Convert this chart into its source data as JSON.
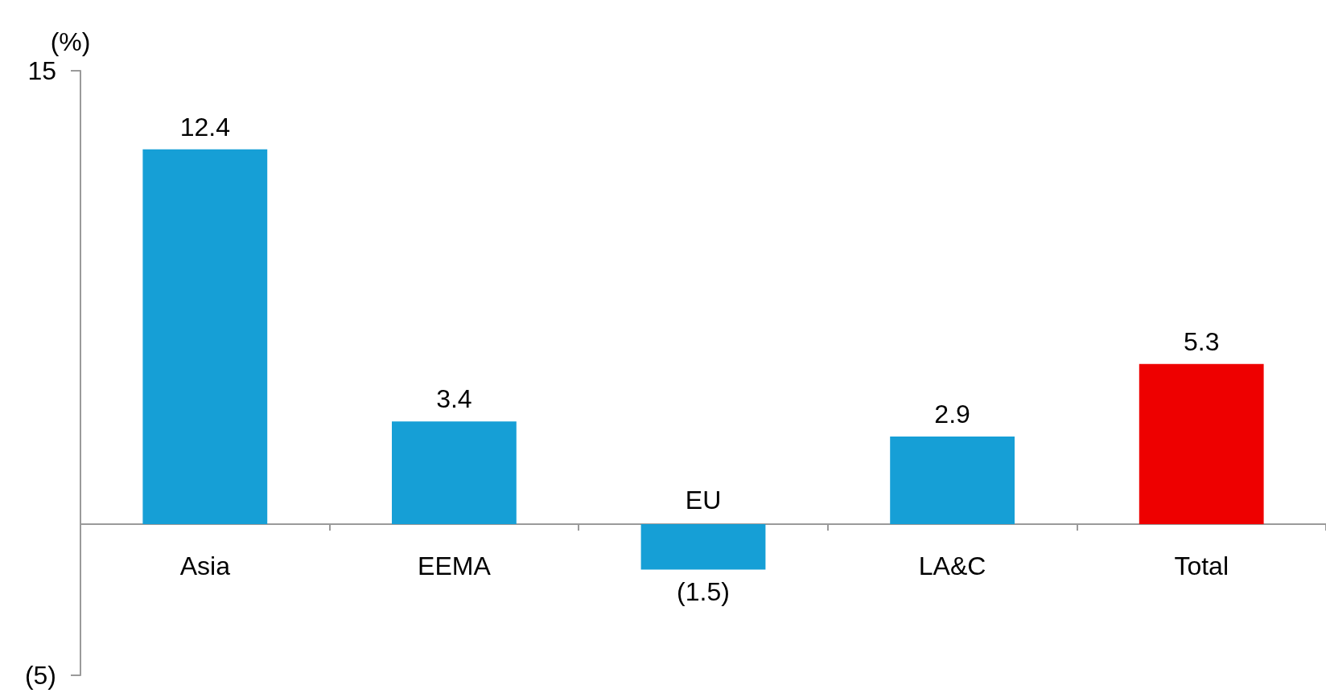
{
  "chart_data": {
    "type": "bar",
    "ylabel": "(%)",
    "categories": [
      "Asia",
      "EEMA",
      "EU",
      "LA&C",
      "Total"
    ],
    "values": [
      12.4,
      3.4,
      -1.5,
      2.9,
      5.3
    ],
    "colors": [
      "#169fd6",
      "#169fd6",
      "#169fd6",
      "#169fd6",
      "#ee0000"
    ],
    "value_labels": [
      "12.4",
      "3.4",
      "(1.5)",
      "2.9",
      "5.3"
    ],
    "ylim": [
      -5,
      15
    ],
    "yticks": [
      15,
      {
        "value": -5,
        "label": "(5)"
      }
    ]
  }
}
